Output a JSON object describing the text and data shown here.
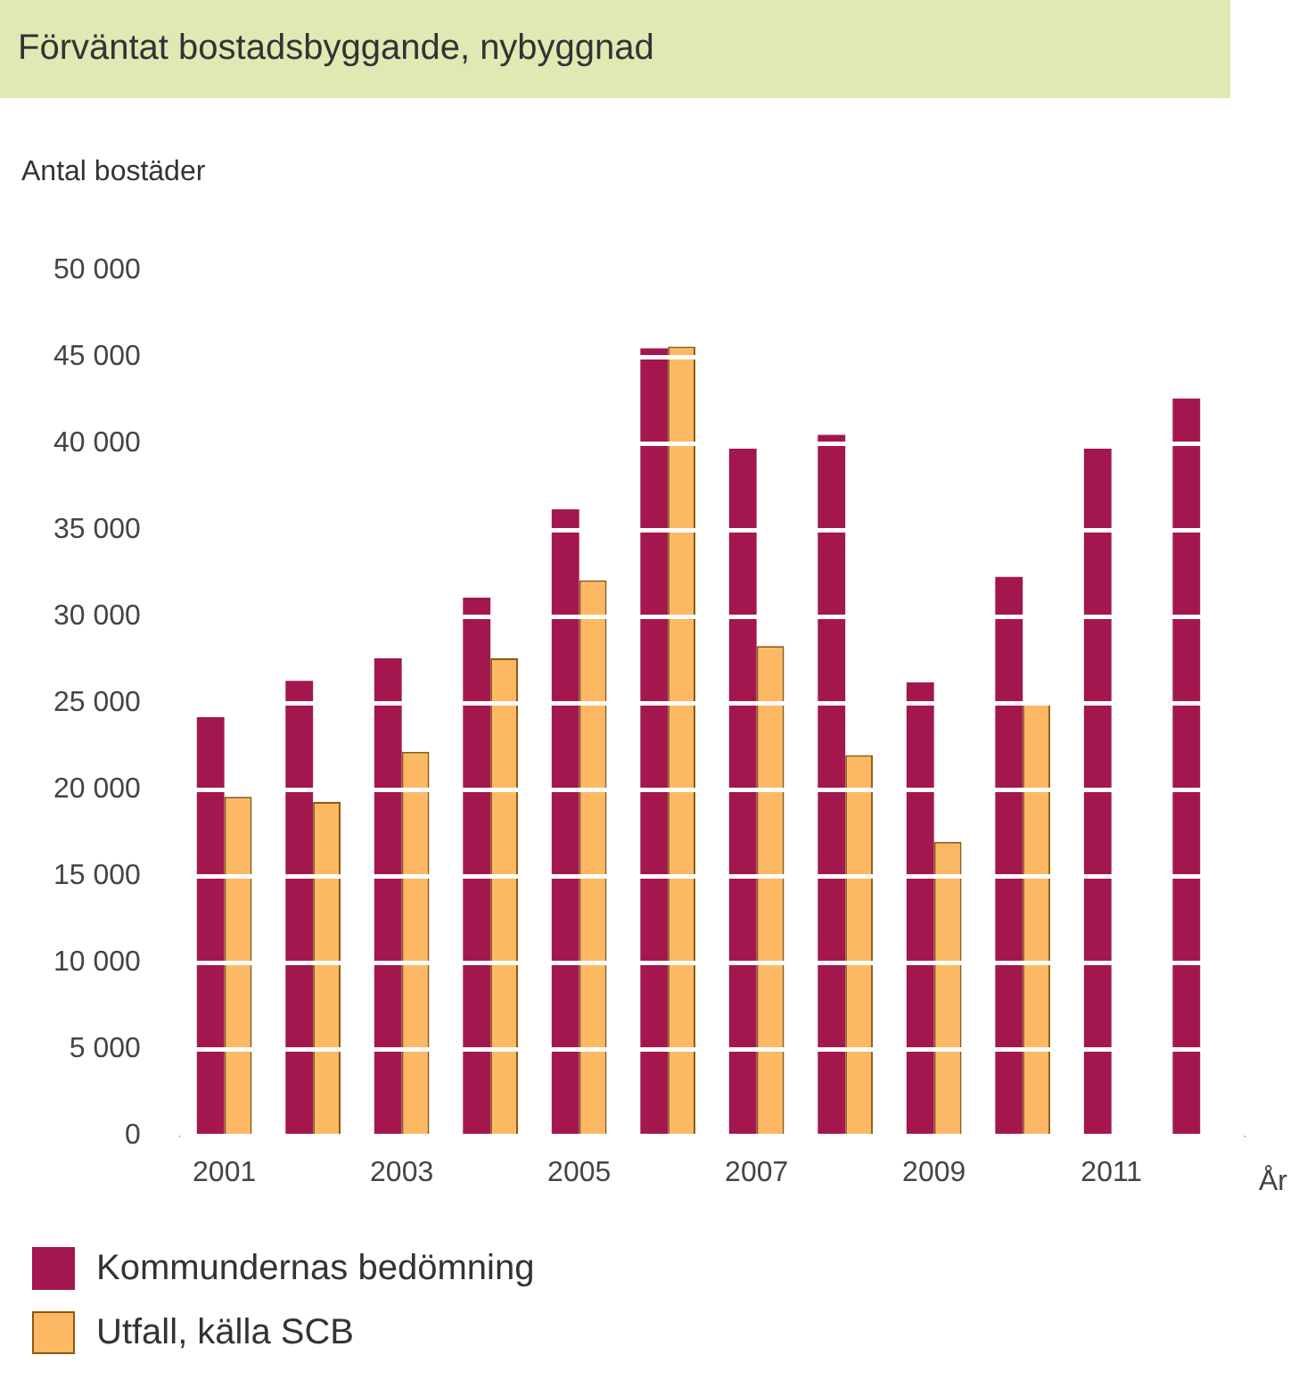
{
  "chart_data": {
    "type": "bar",
    "title": "Förväntat bostadsbyggande, nybyggnad",
    "ylabel": "Antal bostäder",
    "xlabel": "År",
    "categories": [
      "2001",
      null,
      "2003",
      null,
      "2005",
      null,
      "2007",
      null,
      "2009",
      null,
      "2011",
      null
    ],
    "series": [
      {
        "name": "Kommundernas bedömning",
        "color": "#a3174e",
        "values": [
          24200,
          26300,
          27600,
          31100,
          36200,
          45500,
          39700,
          40500,
          26200,
          32300,
          39700,
          42600
        ]
      },
      {
        "name": "Utfall, källa SCB",
        "color": "#fdb863",
        "values": [
          19600,
          19300,
          22200,
          27600,
          32100,
          45600,
          28300,
          22000,
          17000,
          25000,
          null,
          null
        ]
      }
    ],
    "ylim": [
      0,
      50000
    ],
    "yticks": [
      {
        "value": 0,
        "label": "0"
      },
      {
        "value": 5000,
        "label": "5 000"
      },
      {
        "value": 10000,
        "label": "10 000"
      },
      {
        "value": 15000,
        "label": "15 000"
      },
      {
        "value": 20000,
        "label": "20 000"
      },
      {
        "value": 25000,
        "label": "25 000"
      },
      {
        "value": 30000,
        "label": "30 000"
      },
      {
        "value": 35000,
        "label": "35 000"
      },
      {
        "value": 40000,
        "label": "40 000"
      },
      {
        "value": 45000,
        "label": "45 000"
      },
      {
        "value": 50000,
        "label": "50 000"
      }
    ],
    "grid": "y",
    "legend": "bottom"
  }
}
